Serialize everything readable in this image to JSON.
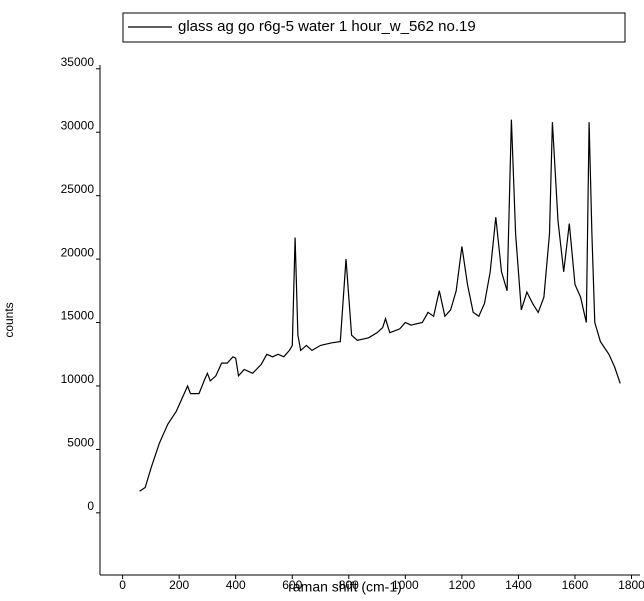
{
  "chart_data": {
    "type": "line",
    "xlabel": "raman shift (cm-1)",
    "ylabel": "counts",
    "x": [
      60,
      80,
      100,
      130,
      160,
      190,
      220,
      230,
      240,
      270,
      290,
      300,
      310,
      330,
      350,
      370,
      390,
      400,
      410,
      430,
      460,
      490,
      510,
      530,
      550,
      570,
      590,
      600,
      610,
      620,
      630,
      650,
      670,
      700,
      740,
      770,
      790,
      810,
      830,
      870,
      900,
      920,
      930,
      945,
      980,
      1000,
      1020,
      1060,
      1080,
      1100,
      1120,
      1140,
      1160,
      1180,
      1200,
      1220,
      1240,
      1260,
      1280,
      1300,
      1320,
      1340,
      1360,
      1375,
      1390,
      1410,
      1430,
      1450,
      1470,
      1490,
      1510,
      1520,
      1540,
      1560,
      1580,
      1600,
      1620,
      1640,
      1650,
      1660,
      1670,
      1690,
      1720,
      1740,
      1760
    ],
    "series": [
      {
        "name": "glass ag go r6g-5 water 1 hour_w_562 no.19",
        "color": "#000000",
        "values": [
          1700,
          2000,
          3500,
          5500,
          7000,
          8000,
          9500,
          10000,
          9400,
          9400,
          10500,
          11000,
          10400,
          10800,
          11800,
          11800,
          12300,
          12200,
          10800,
          11300,
          11000,
          11700,
          12500,
          12300,
          12500,
          12300,
          12800,
          13200,
          21700,
          14000,
          12800,
          13200,
          12800,
          13200,
          13400,
          13500,
          20000,
          14000,
          13600,
          13800,
          14200,
          14600,
          15300,
          14200,
          14500,
          15000,
          14800,
          15000,
          15800,
          15500,
          17500,
          15500,
          16000,
          17500,
          21000,
          18000,
          15800,
          15500,
          16500,
          19000,
          23300,
          19000,
          17500,
          31000,
          22000,
          16000,
          17400,
          16500,
          15800,
          17000,
          22000,
          30800,
          23000,
          19000,
          22800,
          18000,
          17000,
          15000,
          30800,
          22000,
          15000,
          13500,
          12500,
          11500,
          10200
        ]
      }
    ],
    "xlim": [
      -80,
      1830
    ],
    "ylim": [
      -4900,
      35300
    ],
    "xticks": [
      0,
      200,
      400,
      600,
      800,
      1000,
      1200,
      1400,
      1600,
      1800
    ],
    "yticks": [
      0,
      5000,
      10000,
      15000,
      20000,
      25000,
      30000,
      35000
    ],
    "grid": false,
    "legend": "top"
  }
}
